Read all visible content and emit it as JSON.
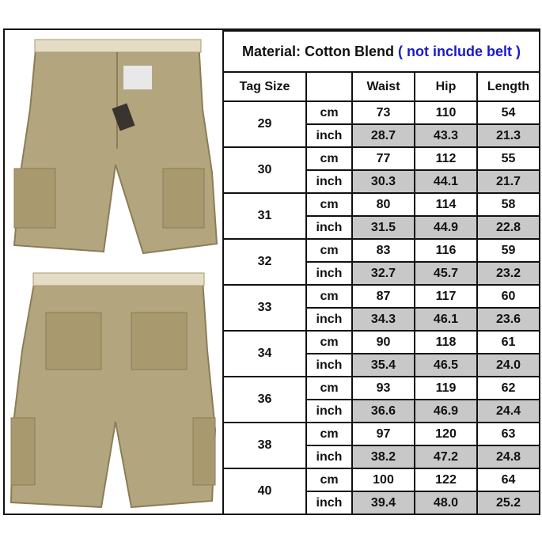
{
  "title": {
    "material": "Material: Cotton Blend",
    "note": "( not include belt )",
    "note_color": "#1a1ac8"
  },
  "headers": [
    "Tag Size",
    "",
    "Waist",
    "Hip",
    "Length"
  ],
  "units": {
    "cm": "cm",
    "inch": "inch"
  },
  "rows": [
    {
      "size": "29",
      "cm": [
        "73",
        "110",
        "54"
      ],
      "inch": [
        "28.7",
        "43.3",
        "21.3"
      ]
    },
    {
      "size": "30",
      "cm": [
        "77",
        "112",
        "55"
      ],
      "inch": [
        "30.3",
        "44.1",
        "21.7"
      ]
    },
    {
      "size": "31",
      "cm": [
        "80",
        "114",
        "58"
      ],
      "inch": [
        "31.5",
        "44.9",
        "22.8"
      ]
    },
    {
      "size": "32",
      "cm": [
        "83",
        "116",
        "59"
      ],
      "inch": [
        "32.7",
        "45.7",
        "23.2"
      ]
    },
    {
      "size": "33",
      "cm": [
        "87",
        "117",
        "60"
      ],
      "inch": [
        "34.3",
        "46.1",
        "23.6"
      ]
    },
    {
      "size": "34",
      "cm": [
        "90",
        "118",
        "61"
      ],
      "inch": [
        "35.4",
        "46.5",
        "24.0"
      ]
    },
    {
      "size": "36",
      "cm": [
        "93",
        "119",
        "62"
      ],
      "inch": [
        "36.6",
        "46.9",
        "24.4"
      ]
    },
    {
      "size": "38",
      "cm": [
        "97",
        "120",
        "63"
      ],
      "inch": [
        "38.2",
        "47.2",
        "24.8"
      ]
    },
    {
      "size": "40",
      "cm": [
        "100",
        "122",
        "64"
      ],
      "inch": [
        "39.4",
        "48.0",
        "25.2"
      ]
    }
  ],
  "colors": {
    "inch_cell_bg": "#c8c8c8",
    "shorts": "#b3a57e"
  }
}
